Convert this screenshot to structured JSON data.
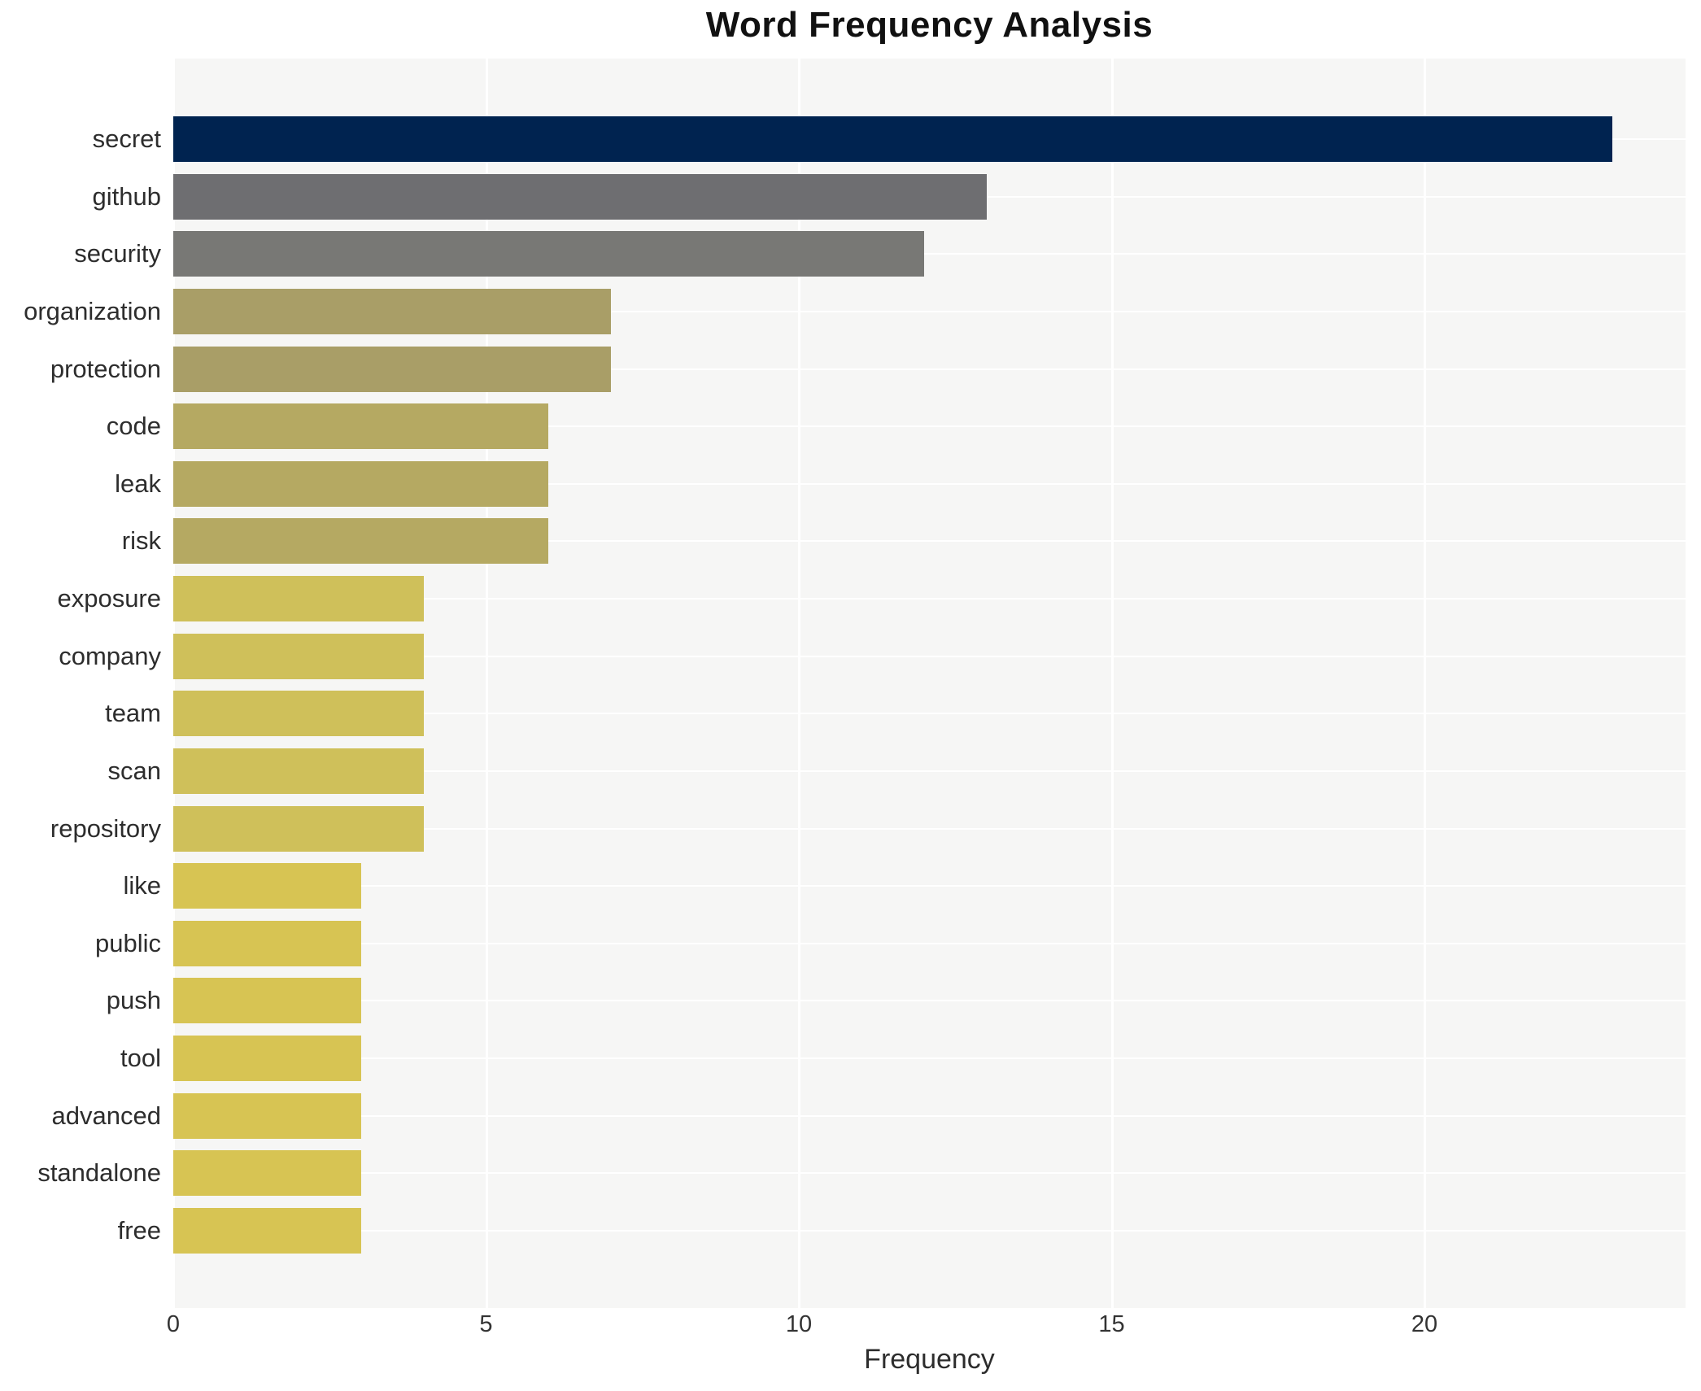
{
  "chart_data": {
    "type": "bar",
    "orientation": "horizontal",
    "title": "Word Frequency Analysis",
    "xlabel": "Frequency",
    "ylabel": "",
    "categories": [
      "secret",
      "github",
      "security",
      "organization",
      "protection",
      "code",
      "leak",
      "risk",
      "exposure",
      "company",
      "team",
      "scan",
      "repository",
      "like",
      "public",
      "push",
      "tool",
      "advanced",
      "standalone",
      "free"
    ],
    "values": [
      23,
      13,
      12,
      7,
      7,
      6,
      6,
      6,
      4,
      4,
      4,
      4,
      4,
      3,
      3,
      3,
      3,
      3,
      3,
      3
    ],
    "bar_colors": [
      "#002350",
      "#6e6e71",
      "#787875",
      "#a99e67",
      "#a99e67",
      "#b5a962",
      "#b5a962",
      "#b5a962",
      "#cfc05a",
      "#cfc05a",
      "#cfc05a",
      "#cfc05a",
      "#cfc05a",
      "#d7c453",
      "#d7c453",
      "#d7c453",
      "#d7c453",
      "#d7c453",
      "#d7c453",
      "#d7c453"
    ],
    "x_ticks": [
      0,
      5,
      10,
      15,
      20
    ],
    "xlim": [
      0,
      24.2
    ],
    "grid": true,
    "legend_position": "none",
    "panel_bg": "#f6f6f5",
    "grid_color": "#ffffff"
  }
}
